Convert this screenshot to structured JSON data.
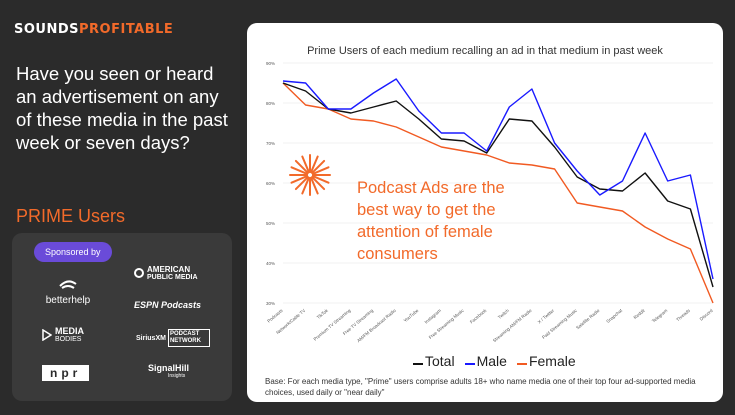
{
  "brand": {
    "part1": "SOUNDS",
    "part2": "PROFITABLE"
  },
  "question": "Have you seen or heard an advertisement on any of these media in the past week or seven days?",
  "segment": "PRIME Users",
  "sponsors": {
    "badge": "Sponsored by",
    "logos": {
      "betterhelp": "betterhelp",
      "apm_line1": "AMERICAN",
      "apm_line2": "PUBLIC MEDIA",
      "espn": "ESPN Podcasts",
      "media_line1": "MEDIA",
      "media_line2": "BODIES",
      "sirius_line1": "SiriusXM",
      "sirius_line2": "PODCAST NETWORK",
      "npr": "npr",
      "signalhill_line1": "SignalHill",
      "signalhill_line2": "Insights"
    }
  },
  "callout": "Podcast Ads are the best way to get the attention of female consumers",
  "footnote": "Base: For each media type, \"Prime\" users comprise adults 18+ who name media one of their top four ad-supported media choices, used daily or \"near daily\"",
  "colors": {
    "total": "#111111",
    "male": "#1a1aff",
    "female": "#f15a22",
    "accent": "#f26a2a"
  },
  "chart_data": {
    "type": "line",
    "title": "Prime Users of each medium recalling an ad in that medium in past week",
    "categories": [
      "Podcasts",
      "Network/Cable TV",
      "TikTok",
      "Premium TV Streaming",
      "Free TV Streaming",
      "AM/FM Broadcast Radio",
      "YouTube",
      "Instagram",
      "Free Streaming Music",
      "Facebook",
      "Twitch",
      "Streaming AM/FM Radio",
      "X / Twitter",
      "Paid Streaming Music",
      "Satellite Radio",
      "Snapchat",
      "Reddit",
      "Telegram",
      "Threads",
      "Discord"
    ],
    "ylim": [
      30,
      90
    ],
    "yticks": [
      "30%",
      "40%",
      "50%",
      "60%",
      "70%",
      "80%",
      "90%"
    ],
    "series": [
      {
        "name": "Total",
        "values": [
          85,
          83,
          78.5,
          77.5,
          79,
          80.5,
          76,
          71,
          70.5,
          67.5,
          76,
          75.5,
          69,
          61.5,
          58.5,
          58,
          62.5,
          55.5,
          53.5,
          34
        ]
      },
      {
        "name": "Male",
        "values": [
          85.5,
          85,
          78.5,
          78.5,
          82.5,
          86,
          78,
          72.5,
          72.5,
          68,
          79,
          83.5,
          70,
          63,
          57,
          60.5,
          72.5,
          60.5,
          62,
          36
        ]
      },
      {
        "name": "Female",
        "values": [
          85,
          79.5,
          78.5,
          76,
          75.5,
          74,
          71.5,
          69,
          68,
          67,
          65,
          64.5,
          63.5,
          55,
          54,
          53,
          49,
          46,
          43.5,
          30
        ]
      }
    ]
  }
}
